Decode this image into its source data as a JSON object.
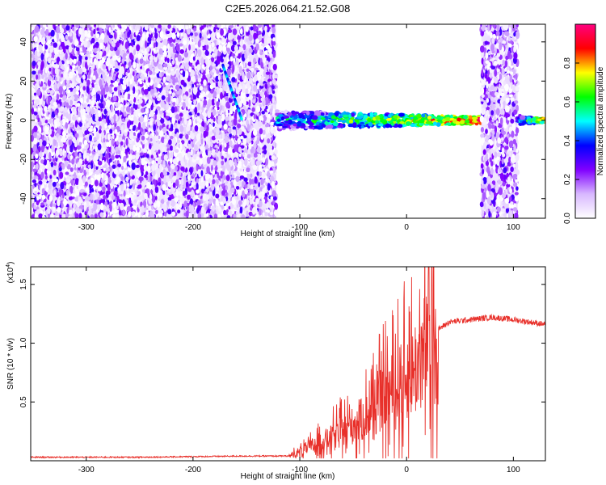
{
  "title": "C2E5.2026.064.21.52.G08",
  "chart_data": [
    {
      "type": "heatmap",
      "xlabel": "Height of straight line (km)",
      "ylabel": "Frequency (Hz)",
      "xlim": [
        -352,
        130
      ],
      "ylim": [
        -50,
        49
      ],
      "x_ticks": [
        -300,
        -200,
        -100,
        0,
        100
      ],
      "y_ticks": [
        -40,
        -20,
        0,
        20,
        40
      ],
      "colorbar": {
        "label": "Normalized spectral amplitude",
        "range": [
          0,
          1
        ],
        "ticks": [
          "0.0",
          "0.2",
          "0.4",
          "0.6",
          "0.8"
        ],
        "colors": [
          "#ffffff",
          "#d8b8ff",
          "#8000ff",
          "#0000ff",
          "#00ffff",
          "#00ff00",
          "#ffff00",
          "#ff0000",
          "#ff0080"
        ]
      },
      "regions": [
        {
          "x_range": [
            -352,
            -122
          ],
          "freq_range": [
            -50,
            49
          ],
          "level": "noise 0.0-0.3"
        },
        {
          "x_range": [
            -122,
            70
          ],
          "freq_center": 0,
          "freq_halfwidth": 4,
          "level": "signal 0.4-1.0"
        },
        {
          "x_range": [
            70,
            104
          ],
          "freq_range": [
            -50,
            49
          ],
          "level": "noise 0.0-0.3"
        },
        {
          "x_range": [
            104,
            130
          ],
          "freq_center": 0,
          "freq_halfwidth": 2,
          "level": "signal 0.4-0.9"
        }
      ]
    },
    {
      "type": "line",
      "xlabel": "Height of straight line (km)",
      "ylabel": "SNR (10 * v/v)",
      "multiplier": "(x10",
      "multiplier_exp": "4",
      "multiplier_close": ")",
      "xlim": [
        -352,
        130
      ],
      "ylim": [
        0,
        1.65
      ],
      "x_ticks": [
        -300,
        -200,
        -100,
        0,
        100
      ],
      "y_ticks": [
        "0.5",
        "1.0",
        "1.5"
      ],
      "color": "#e8302a",
      "series": [
        {
          "name": "SNR",
          "x": [
            -352,
            -250,
            -150,
            -110,
            -100,
            -90,
            -80,
            -70,
            -60,
            -50,
            -40,
            -30,
            -20,
            -10,
            0,
            10,
            20,
            30,
            40,
            60,
            80,
            100,
            130
          ],
          "y": [
            0.03,
            0.03,
            0.04,
            0.04,
            0.08,
            0.12,
            0.16,
            0.2,
            0.25,
            0.3,
            0.36,
            0.45,
            0.55,
            0.62,
            0.7,
            0.82,
            1.0,
            1.12,
            1.18,
            1.2,
            1.22,
            1.2,
            1.16
          ]
        }
      ]
    }
  ]
}
